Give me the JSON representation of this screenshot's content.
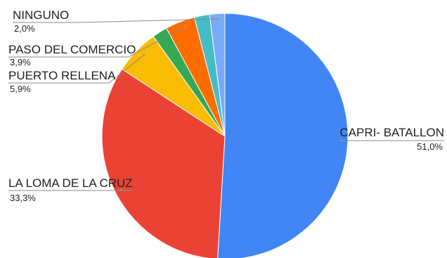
{
  "chart_data": {
    "type": "pie",
    "title": "",
    "start_angle_deg": 0,
    "direction": "clockwise",
    "slices": [
      {
        "label": "CAPRI- BATALLON",
        "value": 51.0,
        "value_label": "51,0%",
        "color": "#4285F4"
      },
      {
        "label": "LA LOMA DE LA CRUZ",
        "value": 33.3,
        "value_label": "33,3%",
        "color": "#EA4335"
      },
      {
        "label": "PUERTO RELLENA",
        "value": 5.9,
        "value_label": "5,9%",
        "color": "#FBBC04"
      },
      {
        "label": "",
        "value": 2.0,
        "value_label": "",
        "color": "#34A853"
      },
      {
        "label": "PASO DEL COMERCIO",
        "value": 3.9,
        "value_label": "3,9%",
        "color": "#FF6D01"
      },
      {
        "label": "",
        "value": 2.0,
        "value_label": "",
        "color": "#46BDC6"
      },
      {
        "label": "NINGUNO",
        "value": 2.0,
        "value_label": "2,0%",
        "color": "#7BAAF7"
      }
    ]
  }
}
